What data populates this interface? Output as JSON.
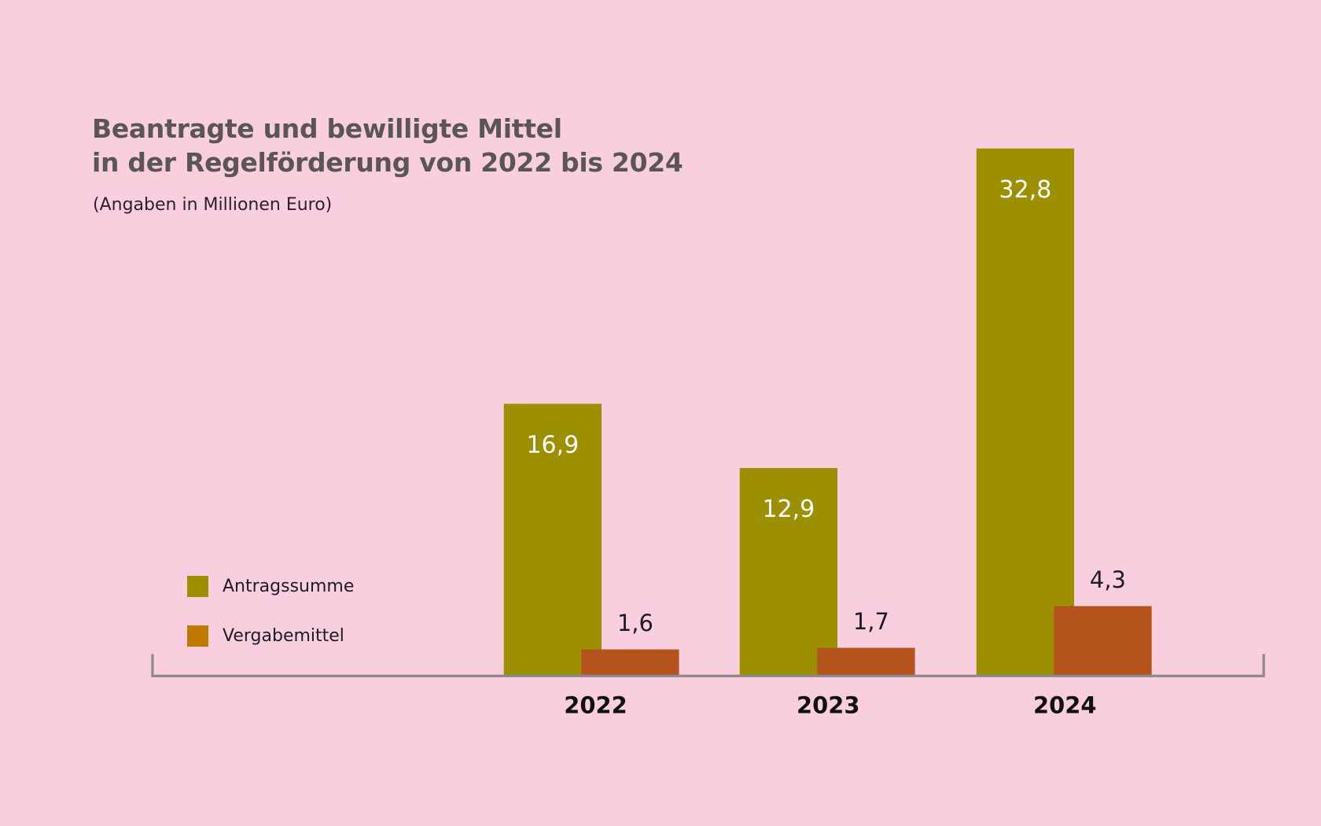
{
  "title_line1": "Beantragte und bewilligte Mittel",
  "title_line2": "in der Regelförderung von 2022 bis 2024",
  "subtitle": "(Angaben in Millionen Euro)",
  "colors": {
    "background": "#f9cfe0",
    "antragssumme": "#9c8f00",
    "vergabemittel": "#b5531d",
    "legend_vergabemittel": "#c17a00",
    "axis": "#8a8a8a",
    "title": "#5b5656"
  },
  "legend": [
    {
      "label": "Antragssumme",
      "color": "#9c8f00"
    },
    {
      "label": "Vergabemittel",
      "color": "#c17a00"
    }
  ],
  "chart_data": {
    "type": "bar",
    "title": "Beantragte und bewilligte Mittel in der Regelförderung von 2022 bis 2024",
    "subtitle": "(Angaben in Millionen Euro)",
    "xlabel": "",
    "ylabel": "",
    "categories": [
      "2022",
      "2023",
      "2024"
    ],
    "series": [
      {
        "name": "Antragssumme",
        "values": [
          16.9,
          12.9,
          32.8
        ],
        "labels": [
          "16,9",
          "12,9",
          "32,8"
        ],
        "color": "#9c8f00"
      },
      {
        "name": "Vergabemittel",
        "values": [
          1.6,
          1.7,
          4.3
        ],
        "labels": [
          "1,6",
          "1,7",
          "4,3"
        ],
        "color": "#b5531d"
      }
    ],
    "ylim": [
      0,
      32.8
    ],
    "grid": false,
    "y_axis_visible": false,
    "legend_position": "bottom-left"
  }
}
